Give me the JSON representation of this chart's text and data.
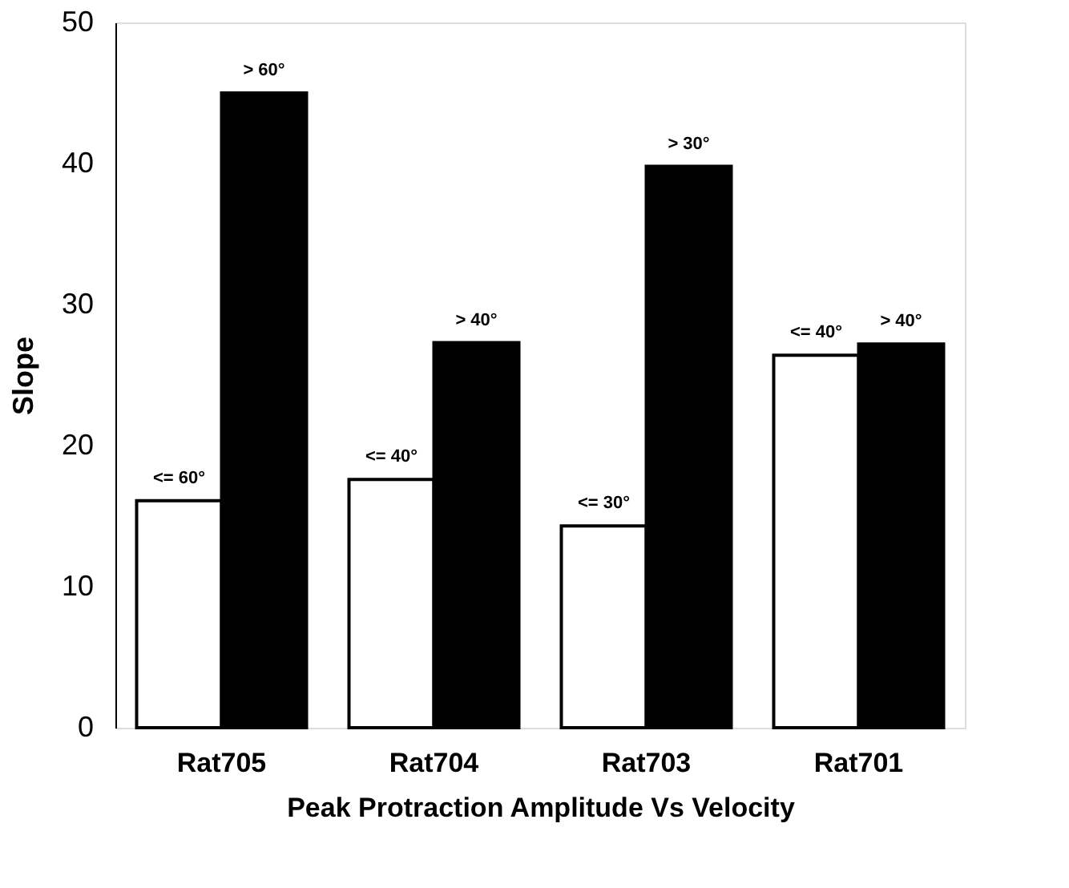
{
  "chart_data": {
    "type": "bar",
    "xlabel": "Peak Protraction Amplitude Vs Velocity",
    "ylabel": "Slope",
    "categories": [
      "Rat705",
      "Rat704",
      "Rat703",
      "Rat701"
    ],
    "series": [
      {
        "color": "#ffffff",
        "values": [
          16.1,
          17.6,
          14.3,
          26.4
        ],
        "value_labels": [
          "<= 60°",
          "<= 40°",
          "<= 30°",
          "<= 40°"
        ]
      },
      {
        "color": "#000000",
        "values": [
          45.0,
          27.3,
          39.8,
          27.2
        ],
        "value_labels": [
          "> 60°",
          "> 40°",
          "> 30°",
          "> 40°"
        ]
      }
    ],
    "ylim": [
      0,
      50
    ],
    "yticks": [
      0,
      10,
      20,
      30,
      40,
      50
    ],
    "grid": false,
    "legend": false
  }
}
